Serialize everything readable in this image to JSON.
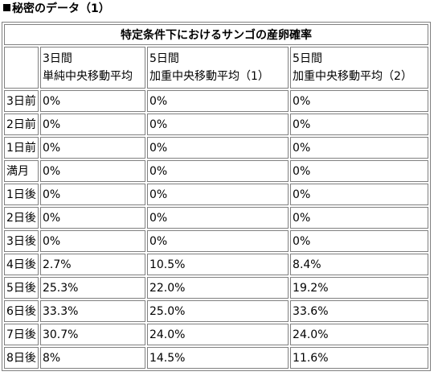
{
  "heading": {
    "text": "秘密のデータ（1）"
  },
  "table": {
    "title": "特定条件下におけるサンゴの産卵確率",
    "columns": [
      {
        "line1": "3日間",
        "line2": "単純中央移動平均"
      },
      {
        "line1": "5日間",
        "line2": "加重中央移動平均（1）"
      },
      {
        "line1": "5日間",
        "line2": "加重中央移動平均（2）"
      }
    ],
    "rows": [
      {
        "label": "3日前",
        "values": [
          "0%",
          "0%",
          "0%"
        ]
      },
      {
        "label": "2日前",
        "values": [
          "0%",
          "0%",
          "0%"
        ]
      },
      {
        "label": "1日前",
        "values": [
          "0%",
          "0%",
          "0%"
        ]
      },
      {
        "label": "満月",
        "values": [
          "0%",
          "0%",
          "0%"
        ]
      },
      {
        "label": "1日後",
        "values": [
          "0%",
          "0%",
          "0%"
        ]
      },
      {
        "label": "2日後",
        "values": [
          "0%",
          "0%",
          "0%"
        ]
      },
      {
        "label": "3日後",
        "values": [
          "0%",
          "0%",
          "0%"
        ]
      },
      {
        "label": "4日後",
        "values": [
          "2.7%",
          "10.5%",
          "8.4%"
        ]
      },
      {
        "label": "5日後",
        "values": [
          "25.3%",
          "22.0%",
          "19.2%"
        ]
      },
      {
        "label": "6日後",
        "values": [
          "33.3%",
          "25.0%",
          "33.6%"
        ]
      },
      {
        "label": "7日後",
        "values": [
          "30.7%",
          "24.0%",
          "24.0%"
        ]
      },
      {
        "label": "8日後",
        "values": [
          "8%",
          "14.5%",
          "11.6%"
        ]
      }
    ]
  }
}
